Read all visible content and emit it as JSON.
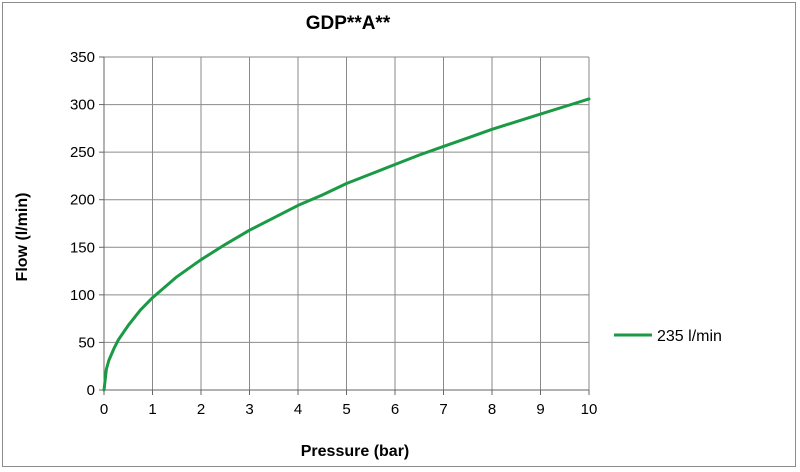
{
  "chart_data": {
    "type": "line",
    "title": "GDP**A**",
    "xlabel": "Pressure (bar)",
    "ylabel": "Flow (l/min)",
    "xlim": [
      0,
      10
    ],
    "ylim": [
      0,
      350
    ],
    "xticks": [
      "0",
      "1",
      "2",
      "3",
      "4",
      "5",
      "6",
      "7",
      "8",
      "9",
      "10"
    ],
    "yticks": [
      "0",
      "50",
      "100",
      "150",
      "200",
      "250",
      "300",
      "350"
    ],
    "grid": true,
    "legend_position": "right",
    "series": [
      {
        "name": "235 l/min",
        "color": "#1a9a45",
        "x": [
          0,
          0.05,
          0.1,
          0.2,
          0.3,
          0.5,
          0.75,
          1,
          1.5,
          2,
          2.5,
          3,
          3.5,
          4,
          4.5,
          5,
          5.5,
          6,
          6.5,
          7,
          7.5,
          8,
          8.5,
          9,
          9.5,
          10
        ],
        "y": [
          0,
          22,
          31,
          43,
          53,
          68,
          84,
          97,
          119,
          137,
          153,
          168,
          181,
          194,
          205,
          217,
          227,
          237,
          247,
          256,
          265,
          274,
          282,
          290,
          298,
          306
        ]
      }
    ]
  }
}
